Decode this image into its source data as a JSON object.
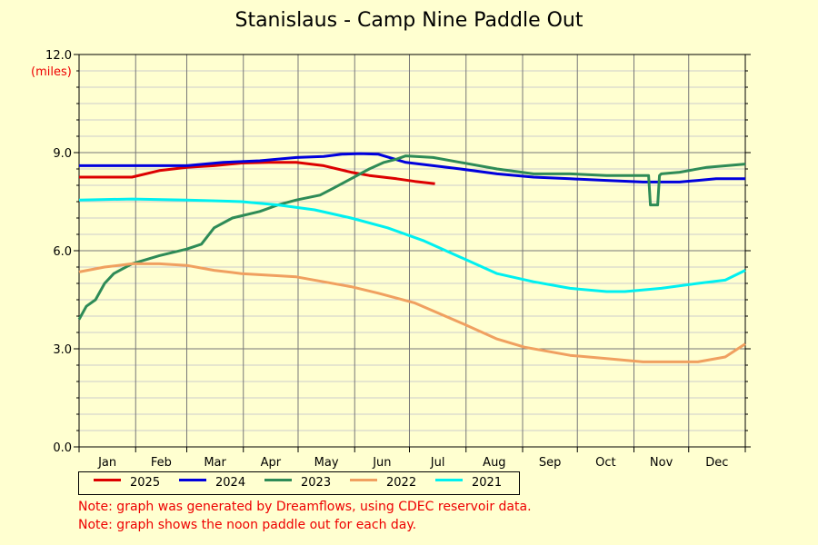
{
  "chart_data": {
    "type": "line",
    "title": "Stanislaus - Camp Nine Paddle Out",
    "ylabel": "(miles)",
    "ylim": [
      0,
      12
    ],
    "yticks": [
      "0.0",
      "3.0",
      "6.0",
      "9.0",
      "12.0"
    ],
    "x_months": [
      "Jan",
      "Feb",
      "Mar",
      "Apr",
      "May",
      "Jun",
      "Jul",
      "Aug",
      "Sep",
      "Oct",
      "Nov",
      "Dec"
    ],
    "xlim_day_of_year": [
      1,
      366
    ],
    "grid": true,
    "legend_placement": "bottom",
    "series": [
      {
        "name": "2025",
        "color": "#dd0000",
        "x": [
          1,
          15,
          30,
          45,
          60,
          75,
          90,
          105,
          120,
          135,
          150,
          160,
          175,
          185,
          196
        ],
        "y": [
          8.25,
          8.25,
          8.25,
          8.45,
          8.55,
          8.6,
          8.68,
          8.7,
          8.7,
          8.6,
          8.4,
          8.3,
          8.2,
          8.12,
          8.05
        ]
      },
      {
        "name": "2024",
        "color": "#0000dd",
        "x": [
          1,
          20,
          40,
          60,
          80,
          100,
          120,
          135,
          145,
          155,
          165,
          180,
          195,
          210,
          230,
          250,
          270,
          290,
          310,
          330,
          340,
          350,
          366
        ],
        "y": [
          8.6,
          8.6,
          8.6,
          8.6,
          8.7,
          8.75,
          8.85,
          8.88,
          8.95,
          8.97,
          8.95,
          8.7,
          8.6,
          8.5,
          8.35,
          8.25,
          8.2,
          8.15,
          8.1,
          8.1,
          8.15,
          8.2,
          8.2
        ]
      },
      {
        "name": "2023",
        "color": "#2e8b57",
        "x": [
          1,
          5,
          10,
          15,
          20,
          30,
          45,
          60,
          68,
          75,
          85,
          100,
          110,
          120,
          133,
          140,
          150,
          160,
          168,
          175,
          180,
          195,
          210,
          230,
          250,
          270,
          290,
          312,
          313,
          314,
          318,
          319,
          320,
          330,
          345,
          366
        ],
        "y": [
          3.9,
          4.3,
          4.5,
          5.0,
          5.3,
          5.6,
          5.85,
          6.05,
          6.2,
          6.7,
          7.0,
          7.2,
          7.4,
          7.55,
          7.7,
          7.9,
          8.2,
          8.5,
          8.7,
          8.8,
          8.9,
          8.85,
          8.7,
          8.5,
          8.35,
          8.35,
          8.3,
          8.3,
          8.3,
          7.4,
          7.4,
          8.3,
          8.35,
          8.4,
          8.55,
          8.65
        ]
      },
      {
        "name": "2022",
        "color": "#f0a060",
        "x": [
          1,
          15,
          30,
          45,
          60,
          75,
          90,
          120,
          150,
          165,
          185,
          210,
          230,
          245,
          270,
          290,
          310,
          325,
          340,
          355,
          366
        ],
        "y": [
          5.35,
          5.5,
          5.6,
          5.6,
          5.55,
          5.4,
          5.3,
          5.2,
          4.9,
          4.7,
          4.4,
          3.8,
          3.3,
          3.05,
          2.8,
          2.7,
          2.6,
          2.6,
          2.6,
          2.75,
          3.15
        ]
      },
      {
        "name": "2021",
        "color": "#00f0f0",
        "x": [
          1,
          30,
          60,
          90,
          110,
          130,
          150,
          170,
          190,
          210,
          230,
          250,
          270,
          290,
          300,
          320,
          340,
          355,
          366
        ],
        "y": [
          7.55,
          7.58,
          7.55,
          7.5,
          7.4,
          7.25,
          7.0,
          6.7,
          6.3,
          5.8,
          5.3,
          5.05,
          4.85,
          4.75,
          4.75,
          4.85,
          5.0,
          5.1,
          5.4
        ]
      }
    ]
  },
  "notes": [
    "Note: graph was generated by Dreamflows, using CDEC reservoir data.",
    "Note: graph shows the noon paddle out for each day."
  ]
}
